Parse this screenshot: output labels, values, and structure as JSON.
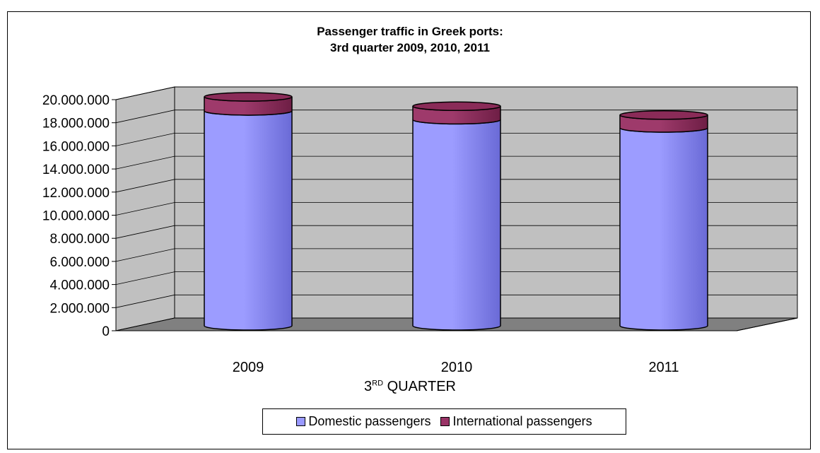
{
  "chart_data": {
    "type": "bar",
    "style": "3d-cylinder-stacked",
    "title": "Passenger traffic in Greek ports:",
    "subtitle": "3rd quarter 2009, 2010, 2011",
    "xlabel_main": "3",
    "xlabel_sup": "RD",
    "xlabel_rest": " QUARTER",
    "ylabel": "",
    "categories": [
      "2009",
      "2010",
      "2011"
    ],
    "series": [
      {
        "name": "Domestic passengers",
        "color": "#9999ff",
        "values": [
          18300000,
          17550000,
          16850000
        ]
      },
      {
        "name": "International passengers",
        "color": "#993366",
        "values": [
          1200000,
          1150000,
          1100000
        ]
      }
    ],
    "ylim": [
      0,
      20000000
    ],
    "yticks": [
      0,
      2000000,
      4000000,
      6000000,
      8000000,
      10000000,
      12000000,
      14000000,
      16000000,
      18000000,
      20000000
    ],
    "ytick_labels": [
      "0",
      "2.000.000",
      "4.000.000",
      "6.000.000",
      "8.000.000",
      "10.000.000",
      "12.000.000",
      "14.000.000",
      "16.000.000",
      "18.000.000",
      "20.000.000"
    ],
    "grid": true,
    "legend_position": "bottom",
    "wall_color": "#c0c0c0",
    "floor_color": "#808080"
  }
}
